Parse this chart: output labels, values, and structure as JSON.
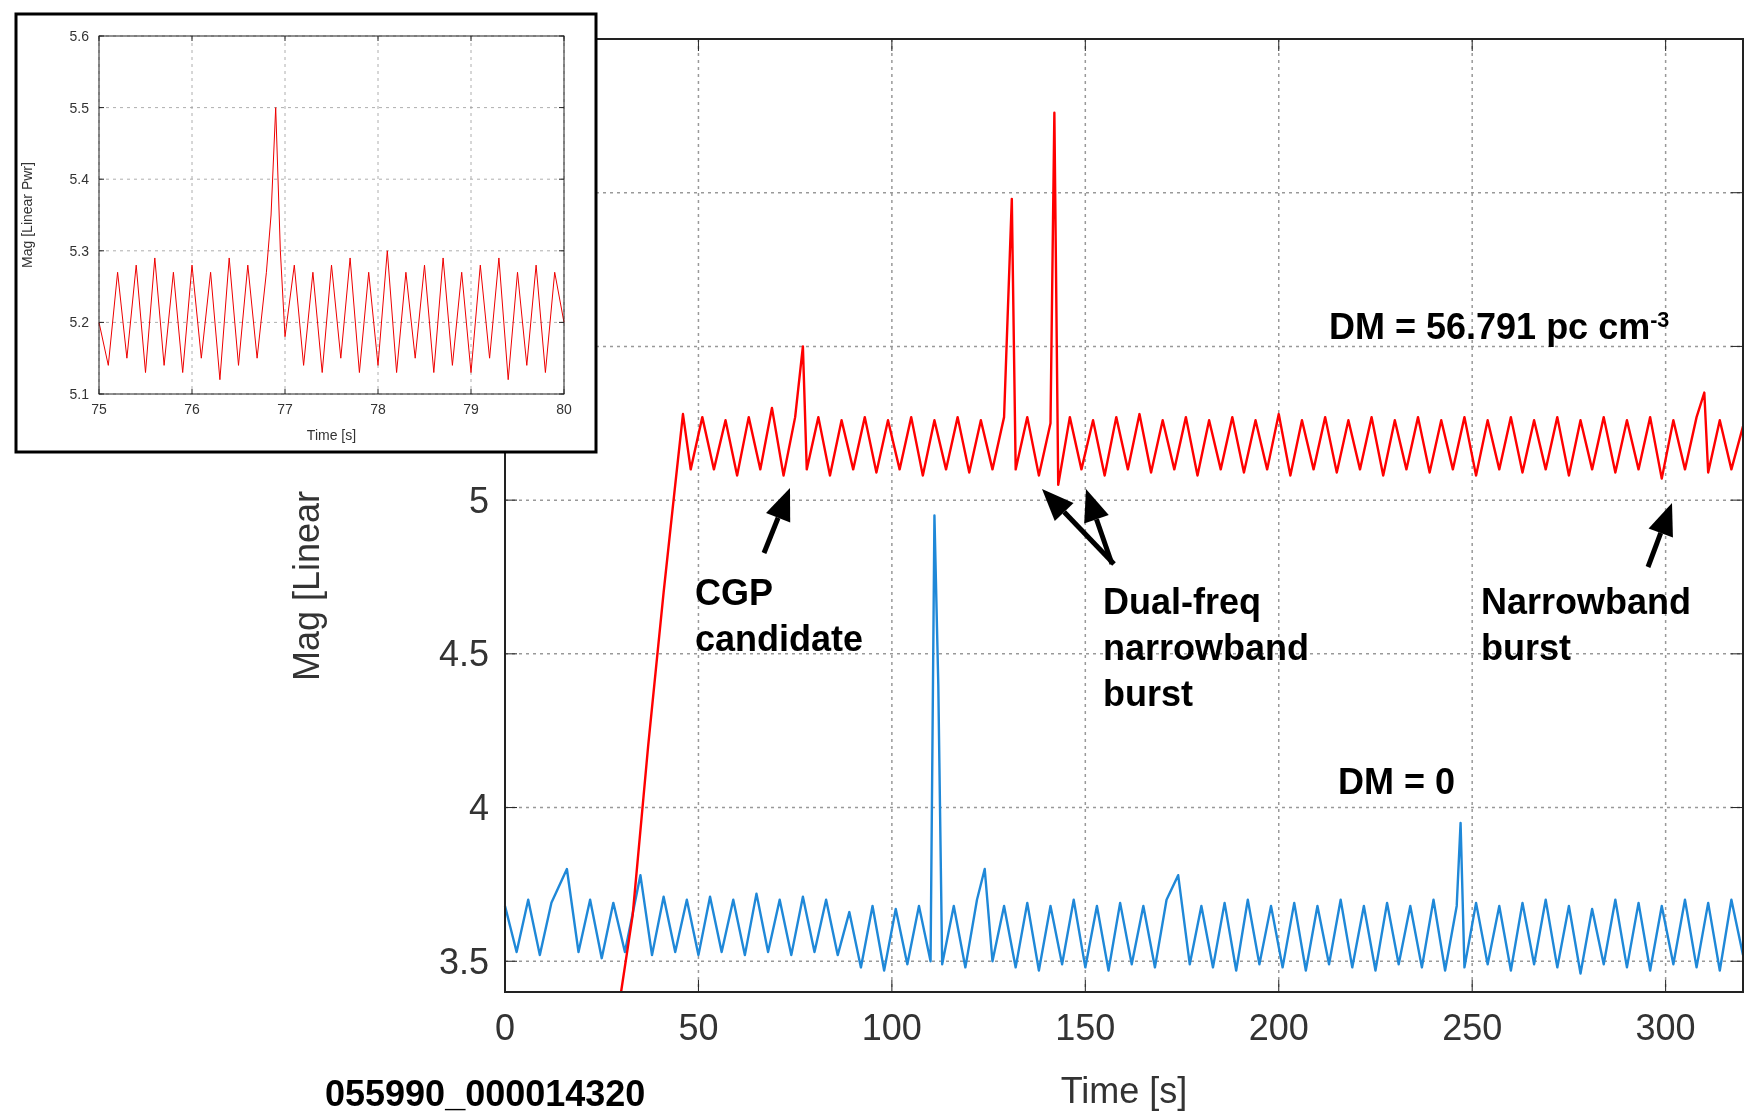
{
  "chart_data": [
    {
      "type": "line",
      "xlabel": "Time [s]",
      "ylabel": "Mag [Linear",
      "xlim": [
        0,
        320
      ],
      "xticks": [
        0,
        50,
        100,
        150,
        200,
        250,
        300
      ],
      "ylim": [
        3.4,
        6.5
      ],
      "yticks": [
        3.5,
        4,
        4.5,
        5,
        {
          "value": 5.5,
          "label": null
        },
        {
          "value": 6,
          "label": null
        }
      ],
      "grid": true,
      "series": [
        {
          "name": "DM = 0",
          "color": "#1f88d8",
          "x": [
            0,
            3,
            6,
            9,
            12,
            16,
            19,
            22,
            25,
            28,
            31,
            35,
            38,
            41,
            44,
            47,
            50,
            53,
            56,
            59,
            62,
            65,
            68,
            71,
            74,
            77,
            80,
            83,
            86,
            89,
            92,
            95,
            98,
            101,
            104,
            107,
            110,
            111,
            112,
            113,
            116,
            119,
            122,
            124,
            126,
            129,
            132,
            135,
            138,
            141,
            144,
            147,
            150,
            153,
            156,
            159,
            162,
            165,
            168,
            171,
            174,
            177,
            180,
            183,
            186,
            189,
            192,
            195,
            198,
            201,
            204,
            207,
            210,
            213,
            216,
            219,
            222,
            225,
            228,
            231,
            234,
            237,
            240,
            243,
            246,
            247,
            248,
            251,
            254,
            257,
            260,
            263,
            266,
            269,
            272,
            275,
            278,
            281,
            284,
            287,
            290,
            293,
            296,
            299,
            302,
            305,
            308,
            311,
            314,
            317,
            320
          ],
          "values": [
            3.68,
            3.53,
            3.7,
            3.52,
            3.69,
            3.8,
            3.53,
            3.7,
            3.51,
            3.69,
            3.53,
            3.78,
            3.52,
            3.71,
            3.53,
            3.7,
            3.52,
            3.71,
            3.53,
            3.7,
            3.52,
            3.72,
            3.53,
            3.7,
            3.52,
            3.71,
            3.53,
            3.7,
            3.52,
            3.66,
            3.48,
            3.68,
            3.47,
            3.67,
            3.49,
            3.68,
            3.5,
            4.95,
            4.4,
            3.49,
            3.68,
            3.48,
            3.7,
            3.8,
            3.5,
            3.68,
            3.48,
            3.69,
            3.47,
            3.68,
            3.49,
            3.7,
            3.48,
            3.68,
            3.47,
            3.69,
            3.49,
            3.68,
            3.48,
            3.7,
            3.78,
            3.49,
            3.68,
            3.48,
            3.69,
            3.47,
            3.7,
            3.49,
            3.68,
            3.48,
            3.69,
            3.47,
            3.68,
            3.49,
            3.7,
            3.48,
            3.68,
            3.47,
            3.69,
            3.49,
            3.68,
            3.48,
            3.7,
            3.47,
            3.68,
            3.95,
            3.48,
            3.69,
            3.49,
            3.68,
            3.47,
            3.69,
            3.49,
            3.7,
            3.48,
            3.68,
            3.46,
            3.67,
            3.49,
            3.7,
            3.48,
            3.69,
            3.47,
            3.68,
            3.49,
            3.7,
            3.48,
            3.69,
            3.47,
            3.7,
            3.52
          ]
        },
        {
          "name": "DM = 56.791 pc cm$^{-3}$",
          "color": "#ff0000",
          "x": [
            30,
            33,
            37,
            41,
            44,
            46,
            48,
            51,
            54,
            57,
            60,
            63,
            66,
            69,
            72,
            75,
            77,
            78,
            81,
            84,
            87,
            90,
            93,
            96,
            99,
            102,
            105,
            108,
            111,
            114,
            117,
            120,
            123,
            126,
            129,
            131,
            132,
            135,
            138,
            141,
            142,
            143,
            146,
            149,
            152,
            155,
            158,
            161,
            164,
            167,
            170,
            173,
            176,
            179,
            182,
            185,
            188,
            191,
            194,
            197,
            200,
            203,
            206,
            209,
            212,
            215,
            218,
            221,
            224,
            227,
            230,
            233,
            236,
            239,
            242,
            245,
            248,
            251,
            254,
            257,
            260,
            263,
            266,
            269,
            272,
            275,
            278,
            281,
            284,
            287,
            290,
            293,
            296,
            299,
            302,
            305,
            308,
            310,
            311,
            314,
            317,
            320
          ],
          "values": [
            3.4,
            3.65,
            4.2,
            4.7,
            5.05,
            5.28,
            5.1,
            5.27,
            5.1,
            5.26,
            5.08,
            5.27,
            5.1,
            5.3,
            5.08,
            5.27,
            5.5,
            5.1,
            5.27,
            5.08,
            5.26,
            5.1,
            5.27,
            5.09,
            5.26,
            5.1,
            5.27,
            5.08,
            5.26,
            5.1,
            5.27,
            5.09,
            5.26,
            5.1,
            5.27,
            5.98,
            5.1,
            5.27,
            5.08,
            5.25,
            6.26,
            5.05,
            5.27,
            5.1,
            5.26,
            5.08,
            5.27,
            5.1,
            5.28,
            5.09,
            5.26,
            5.1,
            5.27,
            5.08,
            5.26,
            5.1,
            5.27,
            5.09,
            5.26,
            5.1,
            5.28,
            5.08,
            5.26,
            5.1,
            5.27,
            5.09,
            5.26,
            5.1,
            5.27,
            5.08,
            5.26,
            5.1,
            5.27,
            5.09,
            5.26,
            5.1,
            5.27,
            5.08,
            5.26,
            5.1,
            5.27,
            5.09,
            5.26,
            5.1,
            5.27,
            5.08,
            5.26,
            5.1,
            5.27,
            5.09,
            5.26,
            5.1,
            5.27,
            5.07,
            5.26,
            5.1,
            5.27,
            5.35,
            5.09,
            5.26,
            5.1,
            5.24
          ]
        }
      ],
      "annotations": [
        "CGP candidate",
        "Dual-freq narrowband burst",
        "Narrowband burst",
        "055990_000014320"
      ]
    },
    {
      "type": "line",
      "xlabel": "Time [s]",
      "ylabel": "Mag [Linear Pwr]",
      "xlim": [
        75,
        80
      ],
      "xticks": [
        75,
        76,
        77,
        78,
        79,
        80
      ],
      "ylim": [
        5.1,
        5.6
      ],
      "yticks": [
        5.1,
        5.2,
        5.3,
        5.4,
        5.5,
        5.6
      ],
      "grid": true,
      "series": [
        {
          "color": "#ee0000",
          "x": [
            75,
            75.1,
            75.2,
            75.3,
            75.4,
            75.5,
            75.6,
            75.7,
            75.8,
            75.9,
            76,
            76.1,
            76.2,
            76.3,
            76.4,
            76.5,
            76.6,
            76.7,
            76.8,
            76.85,
            76.9,
            76.95,
            77,
            77.1,
            77.2,
            77.3,
            77.4,
            77.5,
            77.6,
            77.7,
            77.8,
            77.9,
            78,
            78.1,
            78.2,
            78.3,
            78.4,
            78.5,
            78.6,
            78.7,
            78.8,
            78.9,
            79,
            79.1,
            79.2,
            79.3,
            79.4,
            79.5,
            79.6,
            79.7,
            79.8,
            79.9,
            80
          ],
          "values": [
            5.2,
            5.14,
            5.27,
            5.15,
            5.28,
            5.13,
            5.29,
            5.14,
            5.27,
            5.13,
            5.28,
            5.15,
            5.27,
            5.12,
            5.29,
            5.14,
            5.28,
            5.15,
            5.27,
            5.35,
            5.5,
            5.3,
            5.18,
            5.28,
            5.14,
            5.27,
            5.13,
            5.28,
            5.15,
            5.29,
            5.13,
            5.27,
            5.14,
            5.3,
            5.13,
            5.27,
            5.15,
            5.28,
            5.13,
            5.29,
            5.14,
            5.27,
            5.13,
            5.28,
            5.15,
            5.29,
            5.12,
            5.27,
            5.14,
            5.28,
            5.13,
            5.27,
            5.2
          ]
        }
      ]
    }
  ]
}
